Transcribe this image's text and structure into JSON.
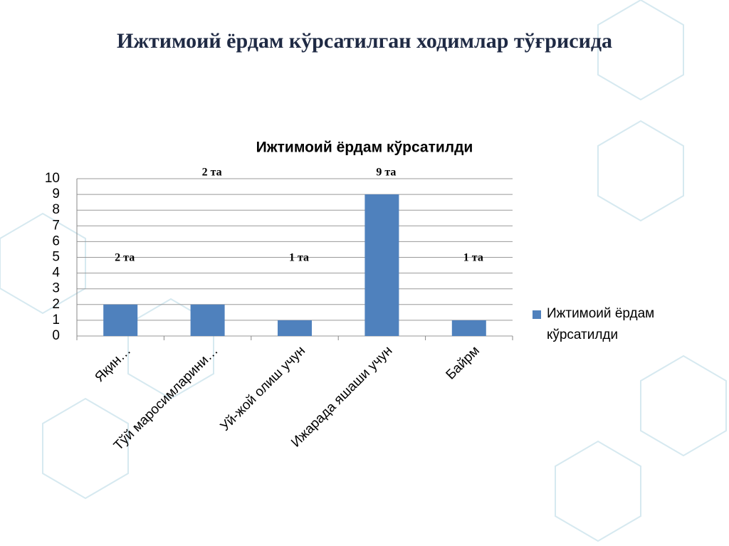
{
  "title": "Ижтимоий ёрдам кўрсатилган ходимлар тўғрисида",
  "chart_data": {
    "type": "bar",
    "title": "Ижтимоий ёрдам кўрсатилди",
    "categories": [
      "Яқин…",
      "Тўй маросимларини…",
      "Уй-жой олиш учун",
      "Ижарада яшаши учун",
      "Байрм"
    ],
    "series": [
      {
        "name": "Ижтимоий ёрдам кўрсатилди",
        "color": "#4f81bd",
        "values": [
          2,
          2,
          1,
          9,
          1
        ],
        "value_labels": [
          "2 та",
          "2 та",
          "1 та",
          "9 та",
          "1 та"
        ]
      }
    ],
    "ylim": [
      0,
      10
    ],
    "yticks": [
      0,
      1,
      2,
      3,
      4,
      5,
      6,
      7,
      8,
      9,
      10
    ],
    "grid": true,
    "legend": "right"
  }
}
